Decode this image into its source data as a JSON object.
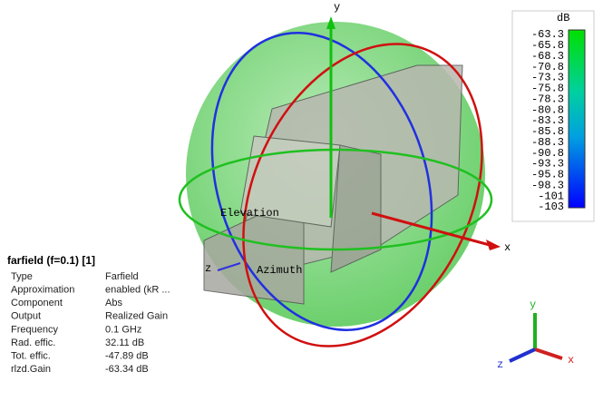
{
  "colorbar": {
    "unit": "dB",
    "labels": [
      "-63.3",
      "-65.8",
      "-68.3",
      "-70.8",
      "-73.3",
      "-75.8",
      "-78.3",
      "-80.8",
      "-83.3",
      "-85.8",
      "-88.3",
      "-90.8",
      "-93.3",
      "-95.8",
      "-98.3",
      "-101",
      "-103"
    ]
  },
  "info": {
    "title": "farfield (f=0.1) [1]",
    "rows": [
      [
        "Type",
        "Farfield"
      ],
      [
        "Approximation",
        "enabled (kR ..."
      ],
      [
        "Component",
        "Abs"
      ],
      [
        "Output",
        "Realized Gain"
      ],
      [
        "Frequency",
        "0.1 GHz"
      ],
      [
        "Rad. effic.",
        "32.11 dB"
      ],
      [
        "Tot. effic.",
        "-47.89 dB"
      ],
      [
        "rlzd.Gain",
        "-63.34 dB"
      ]
    ]
  },
  "scene": {
    "x_axis": "x",
    "y_axis": "y",
    "z_axis": "z",
    "elevation": "Elevation",
    "azimuth": "Azimuth"
  },
  "triad": {
    "x": "x",
    "y": "y",
    "z": "z"
  }
}
